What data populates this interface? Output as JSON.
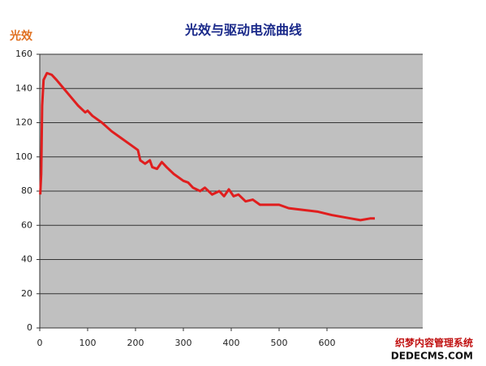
{
  "chart_data": {
    "type": "line",
    "title": "光效与驱动电流曲线",
    "y_label": "光效",
    "x": [
      1,
      3,
      5,
      8,
      15,
      25,
      35,
      50,
      65,
      80,
      95,
      100,
      110,
      130,
      150,
      170,
      190,
      205,
      210,
      220,
      230,
      235,
      245,
      255,
      265,
      280,
      300,
      310,
      320,
      335,
      345,
      360,
      375,
      385,
      395,
      405,
      415,
      430,
      445,
      460,
      480,
      500,
      520,
      550,
      580,
      610,
      630,
      650,
      670,
      690,
      700
    ],
    "series": [
      {
        "name": "光效",
        "color": "#e01e1e",
        "values": [
          78,
          90,
          130,
          145,
          149,
          148,
          145,
          140,
          135,
          130,
          126,
          127,
          124,
          120,
          115,
          111,
          107,
          104,
          98,
          96,
          98,
          94,
          93,
          97,
          94,
          90,
          86,
          85,
          82,
          80,
          82,
          78,
          80,
          77,
          81,
          77,
          78,
          74,
          75,
          72,
          72,
          72,
          70,
          69,
          68,
          66,
          65,
          64,
          63,
          64,
          64
        ]
      }
    ],
    "xlim": [
      0,
      800
    ],
    "xticks": [
      0,
      100,
      200,
      300,
      400,
      500,
      600
    ],
    "ylim": [
      0,
      160
    ],
    "yticks": [
      0,
      20,
      40,
      60,
      80,
      100,
      120,
      140,
      160
    ],
    "grid": true,
    "legend": false,
    "annotations": [
      "织梦内容管理系统",
      "DEDECMS.COM"
    ]
  }
}
